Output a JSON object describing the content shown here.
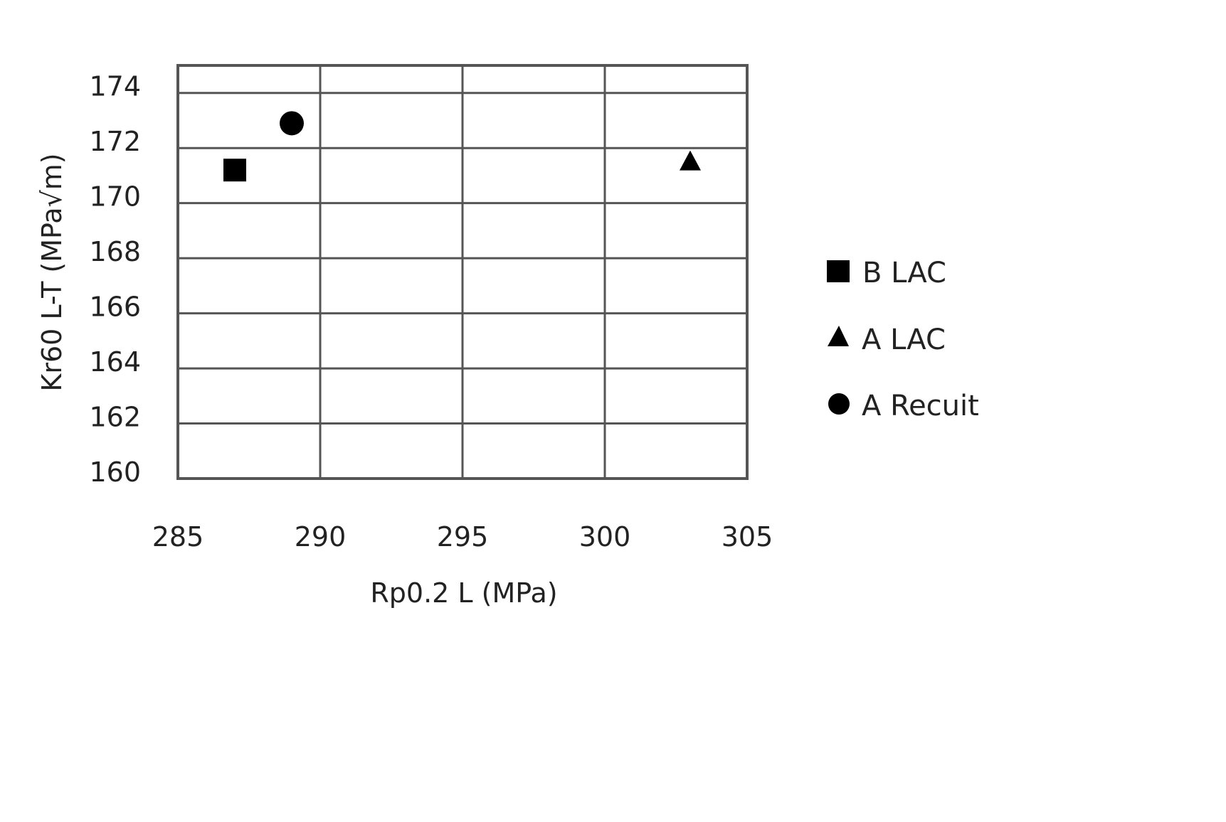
{
  "chart_data": {
    "type": "scatter",
    "title": "",
    "xlabel": "Rp0.2 L (MPa)",
    "ylabel": "Kr60 L-T (MPa√m)",
    "xlim": [
      285,
      305
    ],
    "ylim": [
      160,
      175
    ],
    "x_ticks": [
      285,
      290,
      295,
      300,
      305
    ],
    "y_ticks": [
      160,
      162,
      164,
      166,
      168,
      170,
      172,
      174
    ],
    "grid": true,
    "legend_position": "right",
    "series": [
      {
        "name": "B LAC",
        "marker": "square",
        "color": "#000000",
        "points": [
          {
            "x": 287,
            "y": 171.2
          }
        ]
      },
      {
        "name": "A LAC",
        "marker": "triangle",
        "color": "#000000",
        "points": [
          {
            "x": 303,
            "y": 171.5
          }
        ]
      },
      {
        "name": "A Recuit",
        "marker": "circle",
        "color": "#000000",
        "points": [
          {
            "x": 289,
            "y": 172.9
          }
        ]
      }
    ]
  },
  "legend": {
    "items": [
      {
        "label": "B LAC",
        "icon": "square-marker"
      },
      {
        "label": "A LAC",
        "icon": "triangle-marker"
      },
      {
        "label": "A Recuit",
        "icon": "circle-marker"
      }
    ]
  },
  "axes": {
    "x_title": "Rp0.2 L (MPa)",
    "y_title": "Kr60 L-T (MPa√m)"
  }
}
